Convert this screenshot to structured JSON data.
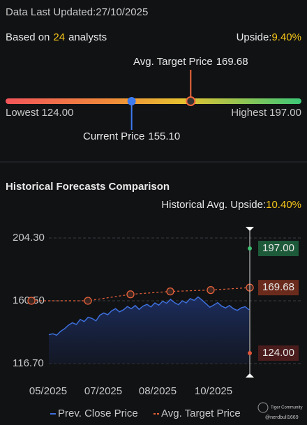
{
  "header": {
    "updated": "Data Last Updated:27/10/2025"
  },
  "summary": {
    "based_prefix": "Based on",
    "analyst_count": "24",
    "based_suffix": "analysts",
    "upside_label": "Upside:",
    "upside": "9.40%"
  },
  "price_range": {
    "lowest": {
      "label": "Lowest",
      "value": 124,
      "value_label": "124.00"
    },
    "highest": {
      "label": "Highest",
      "value": 197,
      "value_label": "197.00"
    },
    "current": {
      "label": "Current Price",
      "value": 155.1,
      "value_label": "155.10",
      "color": "#3d7bf0"
    },
    "target": {
      "label": "Avg. Target Price",
      "value": 169.68,
      "value_label": "169.68",
      "color": "#f0683c"
    }
  },
  "chart_data": {
    "type": "line",
    "title": "Historical Forecasts Comparison",
    "subtitle_label": "Historical Avg. Upside:",
    "subtitle_value": "10.40%",
    "x_labels": [
      "05/2025",
      "07/2025",
      "08/2025",
      "10/2025"
    ],
    "ylim": [
      116.7,
      204.3
    ],
    "yticks": [
      {
        "value": 204.3,
        "label": "204.30"
      },
      {
        "value": 160.5,
        "label": "160.50"
      },
      {
        "value": 116.7,
        "label": "116.70"
      }
    ],
    "grid": true,
    "series": [
      {
        "name": "Prev. Close Price",
        "color": "#3d6fdc",
        "values": [
          136.8,
          137.5,
          136.5,
          139.2,
          141.0,
          143.5,
          145.2,
          144.0,
          147.5,
          146.0,
          149.0,
          148.2,
          146.5,
          150.5,
          152.0,
          150.8,
          153.5,
          155.0,
          152.8,
          154.2,
          156.5,
          155.0,
          157.2,
          154.5,
          156.8,
          158.0,
          156.2,
          159.0,
          157.5,
          160.2,
          158.8,
          161.5,
          159.2,
          157.8,
          160.5,
          159.0,
          162.0,
          160.8,
          163.2,
          161.0,
          158.5,
          156.0,
          157.5,
          159.2,
          156.8,
          155.5,
          157.2,
          155.0,
          153.8,
          155.6,
          156.4,
          154.2
        ]
      },
      {
        "name": "Avg. Target Price",
        "color": "#e8623a",
        "values": [
          160.5,
          160.5,
          165.0,
          167.0,
          168.0,
          169.68
        ],
        "end_label": "169.68",
        "end_label_color": "#6b2b1c"
      }
    ],
    "forecast_high": {
      "value": 197,
      "label": "197.00",
      "color": "#1d5a3a",
      "dot": "#3cbf6e"
    },
    "forecast_low": {
      "value": 124,
      "label": "124.00",
      "color": "#4a1c1c",
      "dot": "#e0553a"
    }
  },
  "footer": {
    "brand": "Tiger Community",
    "user": "@nerdbull1669"
  }
}
